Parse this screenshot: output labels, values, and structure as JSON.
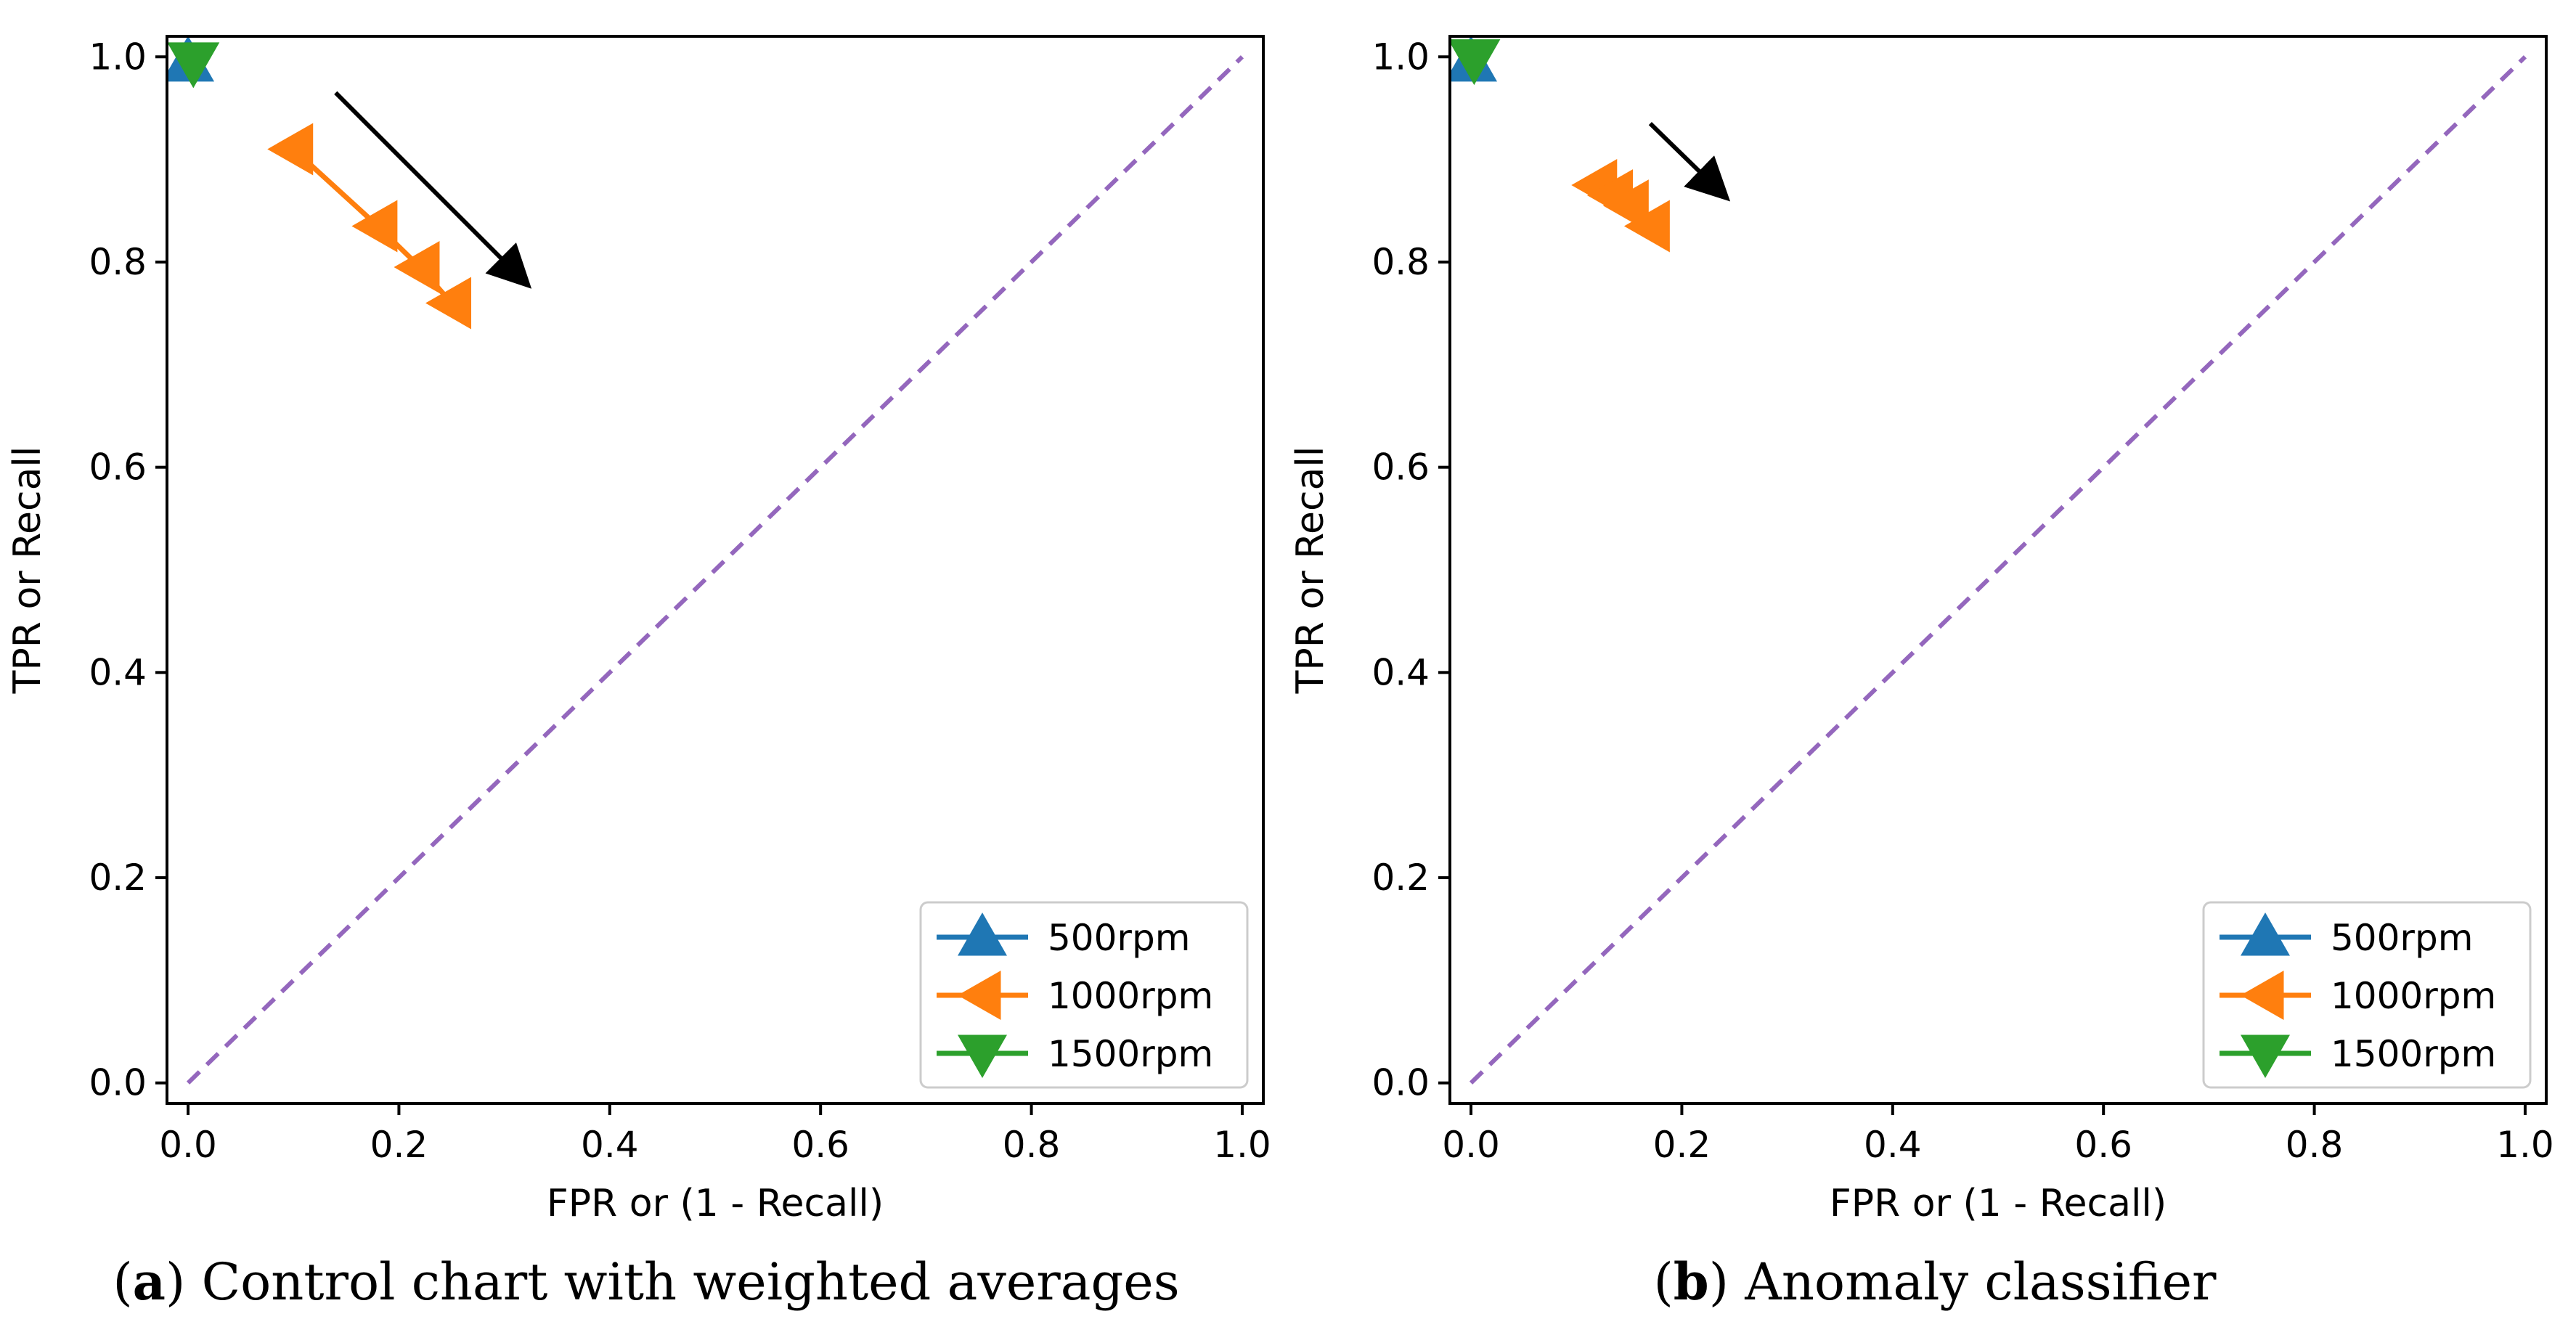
{
  "chart_data": [
    {
      "type": "line",
      "panel": "a",
      "caption_letter": "a",
      "caption_text": " Control chart with weighted averages",
      "xlabel": "FPR or (1 - Recall)",
      "ylabel": "TPR or Recall",
      "xlim": [
        -0.02,
        1.02
      ],
      "ylim": [
        -0.02,
        1.02
      ],
      "xticks": [
        "0.0",
        "0.2",
        "0.4",
        "0.6",
        "0.8",
        "1.0"
      ],
      "yticks": [
        "0.0",
        "0.2",
        "0.4",
        "0.6",
        "0.8",
        "1.0"
      ],
      "grid": false,
      "legend_position": "lower-right",
      "diagonal": {
        "x": [
          0,
          1
        ],
        "y": [
          0,
          1
        ],
        "color": "#9467bd",
        "style": "dashed"
      },
      "arrow": {
        "from": [
          0.14,
          0.965
        ],
        "to": [
          0.32,
          0.78
        ]
      },
      "series": [
        {
          "name": "500rpm",
          "marker": "triangle-up",
          "color": "#1f77b4",
          "x": [
            0.0
          ],
          "y": [
            0.995
          ]
        },
        {
          "name": "1000rpm",
          "marker": "triangle-left",
          "color": "#ff7f0e",
          "x": [
            0.1,
            0.18,
            0.22,
            0.25
          ],
          "y": [
            0.91,
            0.835,
            0.795,
            0.76
          ]
        },
        {
          "name": "1500rpm",
          "marker": "triangle-down",
          "color": "#2ca02c",
          "x": [
            0.005
          ],
          "y": [
            0.995
          ]
        }
      ]
    },
    {
      "type": "line",
      "panel": "b",
      "caption_letter": "b",
      "caption_text": " Anomaly classifier",
      "xlabel": "FPR or (1 - Recall)",
      "ylabel": "TPR or Recall",
      "xlim": [
        -0.02,
        1.02
      ],
      "ylim": [
        -0.02,
        1.02
      ],
      "xticks": [
        "0.0",
        "0.2",
        "0.4",
        "0.6",
        "0.8",
        "1.0"
      ],
      "yticks": [
        "0.0",
        "0.2",
        "0.4",
        "0.6",
        "0.8",
        "1.0"
      ],
      "grid": false,
      "legend_position": "lower-right",
      "diagonal": {
        "x": [
          0,
          1
        ],
        "y": [
          0,
          1
        ],
        "color": "#9467bd",
        "style": "dashed"
      },
      "arrow": {
        "from": [
          0.17,
          0.935
        ],
        "to": [
          0.24,
          0.865
        ]
      },
      "series": [
        {
          "name": "500rpm",
          "marker": "triangle-up",
          "color": "#1f77b4",
          "x": [
            0.0
          ],
          "y": [
            0.995
          ]
        },
        {
          "name": "1000rpm",
          "marker": "triangle-left",
          "color": "#ff7f0e",
          "x": [
            0.12,
            0.135,
            0.15,
            0.17
          ],
          "y": [
            0.875,
            0.865,
            0.855,
            0.835
          ]
        },
        {
          "name": "1500rpm",
          "marker": "triangle-down",
          "color": "#2ca02c",
          "x": [
            0.003
          ],
          "y": [
            0.998
          ]
        }
      ]
    }
  ]
}
